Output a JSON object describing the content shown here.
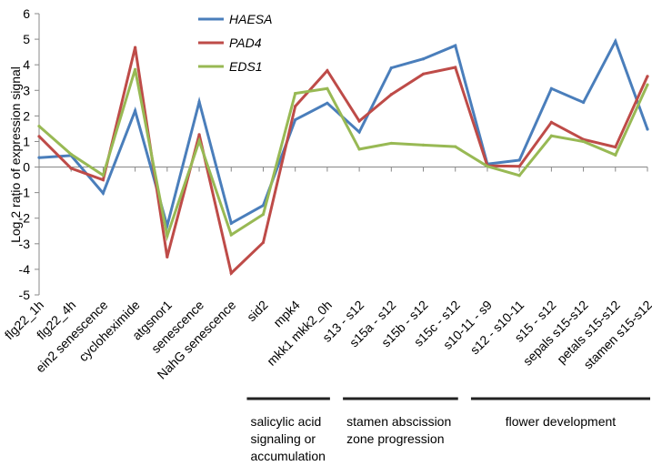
{
  "chart_data": {
    "type": "line",
    "title": "",
    "xlabel": "",
    "ylabel": "Log 2 ratio of expression signal",
    "ylim": [
      -5,
      6
    ],
    "yticks": [
      6,
      5,
      4,
      3,
      2,
      1,
      0,
      -1,
      -2,
      -3,
      -4,
      -5
    ],
    "grid": false,
    "legend_position": "top-center",
    "categories": [
      "flg22_1h",
      "flg22_4h",
      "ein2 senescence",
      "cycloheximide",
      "atgsnor1",
      "senescence",
      "NahG senescence",
      "sid2",
      "mpk4",
      "mkk1 mkk2_0h",
      "s13 - s12",
      "s15a - s12",
      "s15b - s12",
      "s15c - s12",
      "s10-11 - s9",
      "s12 - s10-11",
      "s15 - s12",
      "sepals s15-s12",
      "petals s15-s12",
      "stamen s15-s12"
    ],
    "series": [
      {
        "name": "HAESA",
        "color": "#4a7ebb",
        "values": [
          0.37,
          0.45,
          -1.02,
          2.2,
          -2.3,
          2.55,
          -2.2,
          -1.5,
          1.85,
          2.5,
          1.37,
          3.88,
          4.23,
          4.75,
          0.12,
          0.27,
          3.07,
          2.53,
          4.92,
          1.48
        ]
      },
      {
        "name": "PAD4",
        "color": "#be4b48",
        "values": [
          1.2,
          -0.05,
          -0.5,
          4.68,
          -3.52,
          1.27,
          -4.15,
          -2.95,
          2.38,
          3.77,
          1.8,
          2.84,
          3.64,
          3.9,
          0.05,
          0.03,
          1.75,
          1.08,
          0.78,
          3.55
        ]
      },
      {
        "name": "EDS1",
        "color": "#98b954",
        "values": [
          1.6,
          0.5,
          -0.32,
          3.82,
          -2.7,
          1.02,
          -2.65,
          -1.85,
          2.88,
          3.07,
          0.7,
          0.93,
          0.86,
          0.8,
          0.03,
          -0.33,
          1.22,
          1.0,
          0.47,
          3.22
        ]
      }
    ],
    "groups": [
      {
        "label": "salicylic acid signaling or accumulation",
        "lines": [
          "salicylic acid",
          "signaling or",
          "accumulation"
        ],
        "from": "sid2",
        "to": "mkk1 mkk2_0h"
      },
      {
        "label": "stamen abscission zone progression",
        "lines": [
          "stamen abscission",
          "zone progression"
        ],
        "from": "s13 - s12",
        "to": "s15c - s12"
      },
      {
        "label": "flower development",
        "lines": [
          "flower development"
        ],
        "from": "s10-11 - s9",
        "to": "stamen s15-s12"
      }
    ]
  }
}
